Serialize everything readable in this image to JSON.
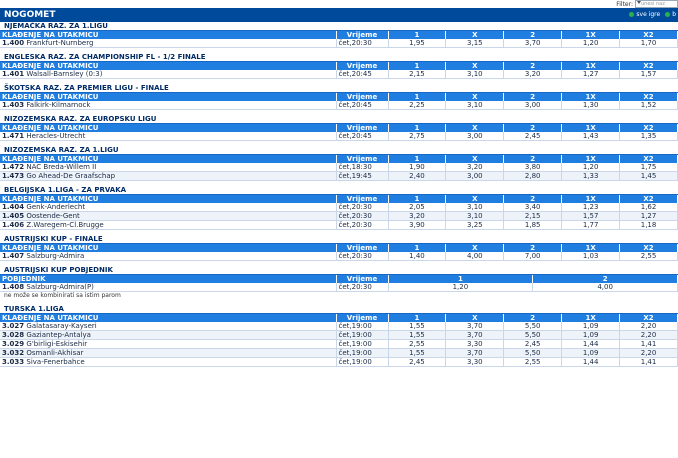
{
  "filter": {
    "label": "Filter:",
    "placeholder": "unesi naz"
  },
  "title": "NOGOMET",
  "view_options": [
    {
      "label": "sve igre"
    },
    {
      "label": "b"
    }
  ],
  "sections": [
    {
      "league": "NJEMAČKA RAZ. ZA 1.LIGU",
      "headers": [
        "KLAĐENJE NA UTAKMICU",
        "Vrijeme",
        "1",
        "X",
        "2",
        "1X",
        "X2"
      ],
      "rows": [
        {
          "code": "1.400",
          "match": "Frankfurt-Nurnberg",
          "time": "čet,20:30",
          "odds": [
            "1,95",
            "3,15",
            "3,70",
            "1,20",
            "1,70"
          ]
        }
      ]
    },
    {
      "league": "ENGLESKA RAZ. ZA CHAMPIONSHIP FL - 1/2 FINALE",
      "headers": [
        "KLAĐENJE NA UTAKMICU",
        "Vrijeme",
        "1",
        "X",
        "2",
        "1X",
        "X2"
      ],
      "rows": [
        {
          "code": "1.401",
          "match": "Walsall-Barnsley (0:3)",
          "time": "čet,20:45",
          "odds": [
            "2,15",
            "3,10",
            "3,20",
            "1,27",
            "1,57"
          ]
        }
      ]
    },
    {
      "league": "ŠKOTSKA RAZ. ZA PREMIER LIGU - FINALE",
      "headers": [
        "KLAĐENJE NA UTAKMICU",
        "Vrijeme",
        "1",
        "X",
        "2",
        "1X",
        "X2"
      ],
      "rows": [
        {
          "code": "1.403",
          "match": "Falkirk-Kilmarnock",
          "time": "čet,20:45",
          "odds": [
            "2,25",
            "3,10",
            "3,00",
            "1,30",
            "1,52"
          ]
        }
      ]
    },
    {
      "league": "NIZOZEMSKA RAZ. ZA EUROPSKU LIGU",
      "headers": [
        "KLAĐENJE NA UTAKMICU",
        "Vrijeme",
        "1",
        "X",
        "2",
        "1X",
        "X2"
      ],
      "rows": [
        {
          "code": "1.471",
          "match": "Heracles-Utrecht",
          "time": "čet,20:45",
          "odds": [
            "2,75",
            "3,00",
            "2,45",
            "1,43",
            "1,35"
          ]
        }
      ]
    },
    {
      "league": "NIZOZEMSKA RAZ. ZA 1.LIGU",
      "headers": [
        "KLAĐENJE NA UTAKMICU",
        "Vrijeme",
        "1",
        "X",
        "2",
        "1X",
        "X2"
      ],
      "rows": [
        {
          "code": "1.472",
          "match": "NAC Breda-Willem II",
          "time": "čet,18:30",
          "odds": [
            "1,90",
            "3,20",
            "3,80",
            "1,20",
            "1,75"
          ]
        },
        {
          "code": "1.473",
          "match": "Go Ahead-De Graafschap",
          "time": "čet,19:45",
          "odds": [
            "2,40",
            "3,00",
            "2,80",
            "1,33",
            "1,45"
          ]
        }
      ]
    },
    {
      "league": "BELGIJSKA 1.LIGA - ZA PRVAKA",
      "headers": [
        "KLAĐENJE NA UTAKMICU",
        "Vrijeme",
        "1",
        "X",
        "2",
        "1X",
        "X2"
      ],
      "rows": [
        {
          "code": "1.404",
          "match": "Genk-Anderlecht",
          "time": "čet,20:30",
          "odds": [
            "2,05",
            "3,10",
            "3,40",
            "1,23",
            "1,62"
          ]
        },
        {
          "code": "1.405",
          "match": "Oostende-Gent",
          "time": "čet,20:30",
          "odds": [
            "3,20",
            "3,10",
            "2,15",
            "1,57",
            "1,27"
          ]
        },
        {
          "code": "1.406",
          "match": "Z.Waregem-Cl.Brugge",
          "time": "čet,20:30",
          "odds": [
            "3,90",
            "3,25",
            "1,85",
            "1,77",
            "1,18"
          ]
        }
      ]
    },
    {
      "league": "AUSTRIJSKI KUP - FINALE",
      "headers": [
        "KLAĐENJE NA UTAKMICU",
        "Vrijeme",
        "1",
        "X",
        "2",
        "1X",
        "X2"
      ],
      "rows": [
        {
          "code": "1.407",
          "match": "Salzburg-Admira",
          "time": "čet,20:30",
          "odds": [
            "1,40",
            "4,00",
            "7,00",
            "1,03",
            "2,55"
          ]
        }
      ]
    },
    {
      "league": "AUSTRIJSKI KUP POBJEDNIK",
      "kind": "winner",
      "headers": [
        "POBJEDNIK",
        "Vrijeme",
        "1",
        "2"
      ],
      "rows": [
        {
          "code": "1.408",
          "match": "Salzburg-Admira(P)",
          "time": "čet,20:30",
          "odds": [
            "1,20",
            "4,00"
          ]
        }
      ],
      "note": "ne može se kombinirati sa istim parom"
    },
    {
      "league": "TURSKA 1.LIGA",
      "headers": [
        "KLAĐENJE NA UTAKMICU",
        "Vrijeme",
        "1",
        "X",
        "2",
        "1X",
        "X2"
      ],
      "rows": [
        {
          "code": "3.027",
          "match": "Galatasaray-Kayseri",
          "time": "čet,19:00",
          "odds": [
            "1,55",
            "3,70",
            "5,50",
            "1,09",
            "2,20"
          ]
        },
        {
          "code": "3.028",
          "match": "Gaziantep-Antalya",
          "time": "čet,19:00",
          "odds": [
            "1,55",
            "3,70",
            "5,50",
            "1,09",
            "2,20"
          ]
        },
        {
          "code": "3.029",
          "match": "G'birligi-Eskisehir",
          "time": "čet,19:00",
          "odds": [
            "2,55",
            "3,30",
            "2,45",
            "1,44",
            "1,41"
          ]
        },
        {
          "code": "3.032",
          "match": "Osmanli-Akhisar",
          "time": "čet,19:00",
          "odds": [
            "1,55",
            "3,70",
            "5,50",
            "1,09",
            "2,20"
          ]
        },
        {
          "code": "3.033",
          "match": "Siva-Fenerbahce",
          "time": "čet,19:00",
          "odds": [
            "2,45",
            "3,30",
            "2,55",
            "1,44",
            "1,41"
          ]
        }
      ]
    }
  ]
}
